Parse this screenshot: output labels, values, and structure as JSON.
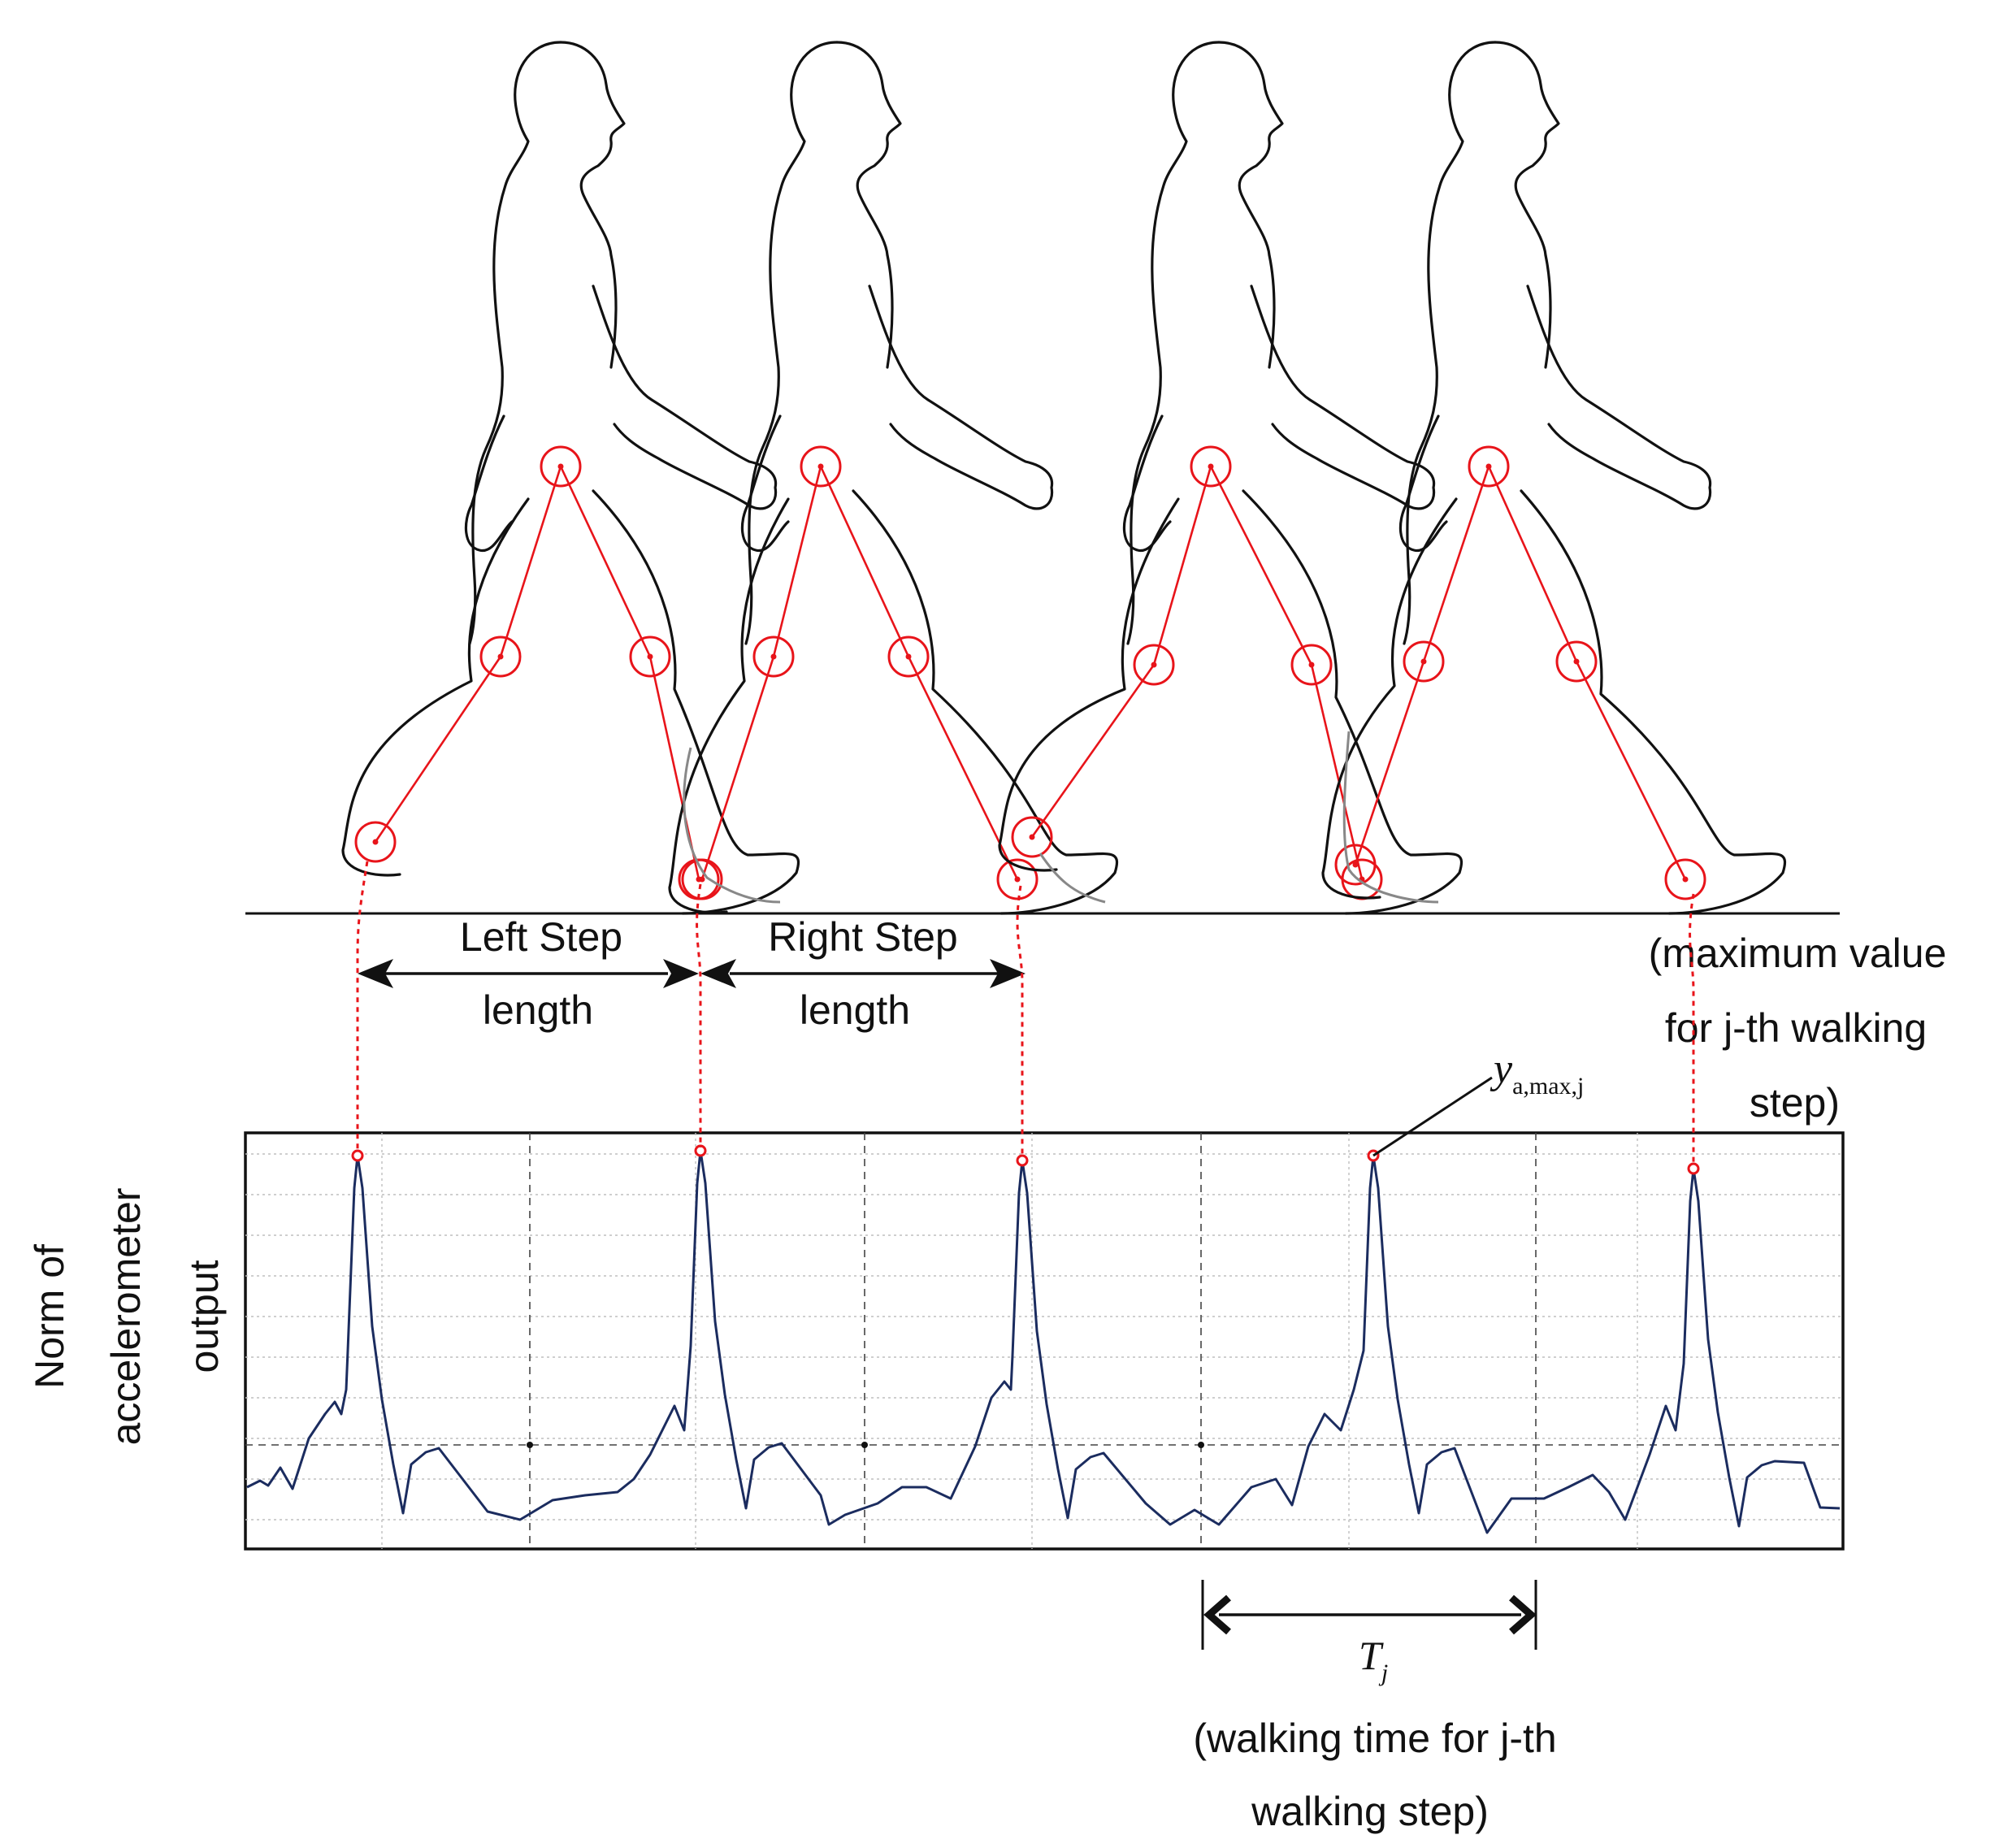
{
  "labels": {
    "left_step_line1": "Left Step",
    "left_step_line2": "length",
    "right_step_line1": "Right Step",
    "right_step_line2": "length",
    "max_note_line1": "(maximum value",
    "max_note_line2": "for j-th walking",
    "max_note_line3": "step)",
    "y_axis_line1": "Norm of",
    "y_axis_line2": "accelerometer",
    "y_axis_line3": "output",
    "peak_symbol": "y",
    "peak_subscript": "a,max,j",
    "period_symbol": "T",
    "period_subscript": "j",
    "period_note_line1": "(walking time for j-th",
    "period_note_line2": "walking step)"
  },
  "colors": {
    "outline": "#111111",
    "joints": "#e8141a",
    "signal": "#1b2c5f",
    "grid": "#bfbfbf"
  },
  "figures": [
    {
      "stance": "left-leg-back"
    },
    {
      "stance": "right-leg-back"
    },
    {
      "stance": "left-leg-back"
    },
    {
      "stance": "right-leg-back"
    }
  ],
  "signal": {
    "peaks_marked": 5,
    "major_divisions": 5
  }
}
